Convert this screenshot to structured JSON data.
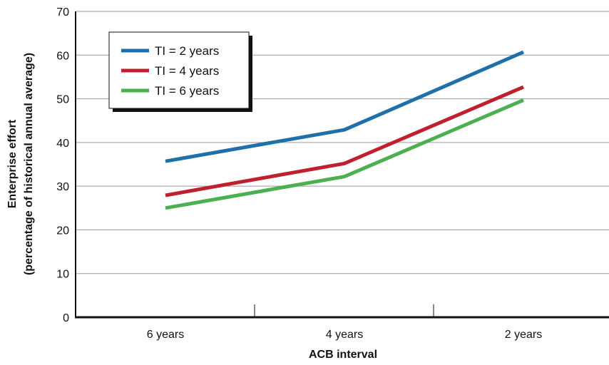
{
  "chart_data": {
    "type": "line",
    "categories": [
      "6 years",
      "4 years",
      "2 years"
    ],
    "series": [
      {
        "name": "TI = 2 years",
        "color": "#1f6fa8",
        "values": [
          35.7,
          42.9,
          60.7
        ]
      },
      {
        "name": "TI = 4 years",
        "color": "#c0202e",
        "values": [
          27.9,
          35.2,
          52.7
        ]
      },
      {
        "name": "TI = 6 years",
        "color": "#4caf50",
        "values": [
          25.0,
          32.2,
          49.7
        ]
      }
    ],
    "xlabel": "ACB interval",
    "ylabel_line1": "Enterprise effort",
    "ylabel_line2": "(percentage of historical annual average)",
    "ylim": [
      0,
      70
    ],
    "yticks": [
      "0",
      "10",
      "20",
      "30",
      "40",
      "50",
      "60",
      "70"
    ],
    "grid": "horizontal",
    "legend_position": "top-left"
  }
}
